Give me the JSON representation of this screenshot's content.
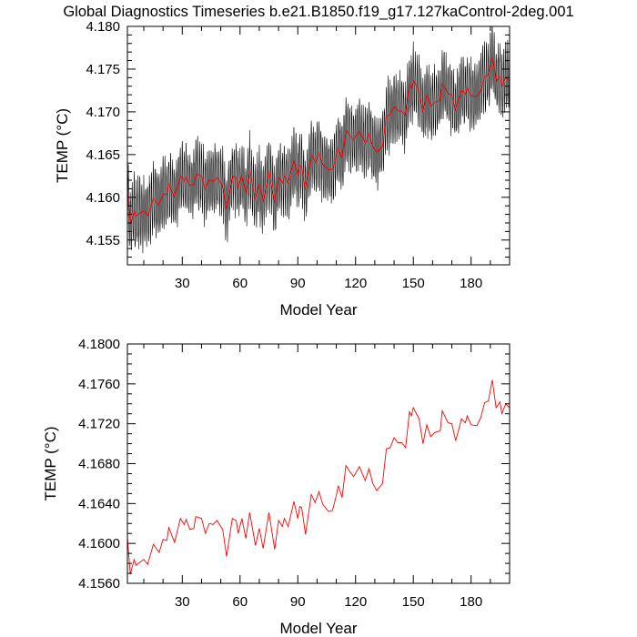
{
  "title": "Global Diagnostics Timeseries b.e21.B1850.f19_g17.127kaControl-2deg.001",
  "colors": {
    "monthly": "#000000",
    "annual": "#ff0000",
    "axis": "#000000"
  },
  "annual_points": {
    "x": [
      1,
      3,
      5,
      6,
      10,
      12,
      15,
      18,
      20,
      22,
      23,
      26,
      29,
      31,
      32,
      34,
      36,
      37,
      40,
      42,
      44,
      46,
      48,
      51,
      53,
      56,
      58,
      59,
      61,
      63,
      65,
      68,
      70,
      72,
      75,
      78,
      80,
      82,
      83,
      85,
      88,
      90,
      91,
      92,
      94,
      97,
      99,
      101,
      103,
      106,
      108,
      110,
      111,
      113,
      115,
      117,
      119,
      122,
      125,
      127,
      129,
      131,
      134,
      136,
      138,
      140,
      142,
      144,
      146,
      148,
      149,
      150,
      153,
      155,
      157,
      159,
      161,
      164,
      165,
      168,
      170,
      172,
      173,
      175,
      177,
      178,
      180,
      183,
      185,
      187,
      189,
      191,
      193,
      195,
      196,
      198,
      200
    ],
    "y": [
      4.1619,
      4.1569,
      4.1584,
      4.1578,
      4.1584,
      4.1579,
      4.1599,
      4.1591,
      4.1604,
      4.1603,
      4.1616,
      4.1601,
      4.1625,
      4.1619,
      4.1624,
      4.1614,
      4.1615,
      4.1627,
      4.1625,
      4.161,
      4.162,
      4.1619,
      4.1623,
      4.1614,
      4.1587,
      4.1625,
      4.1623,
      4.161,
      4.1625,
      4.1605,
      4.1631,
      4.1598,
      4.1615,
      4.1595,
      4.1631,
      4.1594,
      4.1623,
      4.1617,
      4.1625,
      4.1617,
      4.1642,
      4.1625,
      4.1637,
      4.1636,
      4.1609,
      4.1649,
      4.1641,
      4.1652,
      4.1639,
      4.1632,
      4.1633,
      4.1648,
      4.1658,
      4.1646,
      4.1678,
      4.1672,
      4.1667,
      4.1677,
      4.1663,
      4.1675,
      4.166,
      4.1653,
      4.166,
      4.1695,
      4.1696,
      4.1706,
      4.1701,
      4.1701,
      4.1696,
      4.1732,
      4.1728,
      4.1736,
      4.1725,
      4.17,
      4.1719,
      4.1707,
      4.1711,
      4.1713,
      4.1733,
      4.1721,
      4.172,
      4.1703,
      4.171,
      4.1725,
      4.1721,
      4.1728,
      4.1719,
      4.1718,
      4.1726,
      4.1741,
      4.1743,
      4.1764,
      4.1736,
      4.1742,
      4.173,
      4.174,
      4.1736
    ]
  },
  "chart_data": [
    {
      "type": "line",
      "title": "Global Diagnostics Timeseries b.e21.B1850.f19_g17.127kaControl-2deg.001",
      "xlabel": "Model Year",
      "ylabel": "TEMP (°C)",
      "xlim": [
        1.5,
        200
      ],
      "ylim": [
        4.1521,
        4.18
      ],
      "xticks": [
        30,
        60,
        90,
        120,
        150,
        180
      ],
      "xtick_labels": [
        "30",
        "60",
        "90",
        "120",
        "150",
        "180"
      ],
      "yticks": [
        4.155,
        4.16,
        4.165,
        4.17,
        4.175,
        4.18
      ],
      "ytick_labels": [
        "4.155",
        "4.160",
        "4.165",
        "4.170",
        "4.175",
        "4.180"
      ],
      "grid": false,
      "series": [
        {
          "kind": "monthly",
          "color": "#000000",
          "seasonal_amplitude": 0.0035
        },
        {
          "kind": "annual",
          "color": "#ff0000",
          "source": "annual_points"
        }
      ]
    },
    {
      "type": "line",
      "xlabel": "Model Year",
      "ylabel": "TEMP (°C)",
      "xlim": [
        1.5,
        200
      ],
      "ylim": [
        4.156,
        4.18
      ],
      "xticks": [
        30,
        60,
        90,
        120,
        150,
        180
      ],
      "xtick_labels": [
        "30",
        "60",
        "90",
        "120",
        "150",
        "180"
      ],
      "yticks": [
        4.156,
        4.16,
        4.164,
        4.168,
        4.172,
        4.176,
        4.18
      ],
      "ytick_labels": [
        "4.1560",
        "4.1600",
        "4.1640",
        "4.1680",
        "4.1720",
        "4.1760",
        "4.1800"
      ],
      "grid": false,
      "series": [
        {
          "kind": "annual",
          "color": "#ff0000",
          "source": "annual_points"
        }
      ]
    }
  ]
}
